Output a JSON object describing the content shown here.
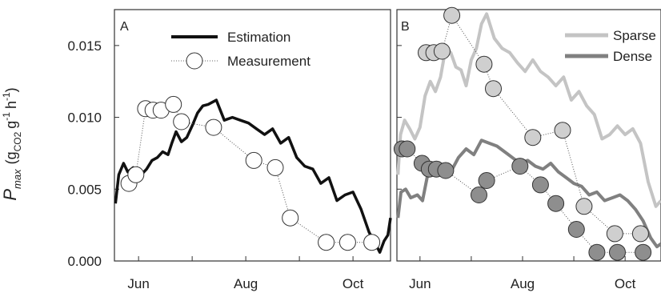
{
  "chart_data": [
    {
      "panel": "A",
      "type": "line",
      "xlabel": "",
      "ylabel": "P max (g CO2 g-1 h-1)",
      "ylim": [
        0,
        0.0175
      ],
      "yticks": [
        "0.000",
        "0.005",
        "0.010",
        "0.015"
      ],
      "xtick_labels": [
        "Jun",
        "Aug",
        "Oct"
      ],
      "xtick_months": [
        6,
        8,
        10
      ],
      "xlim_months": [
        5.55,
        10.7
      ],
      "legend": [
        {
          "label": "Estimation",
          "style": "line",
          "color": "#111111"
        },
        {
          "label": "Measurement",
          "style": "circle",
          "color": "#ffffff"
        }
      ],
      "series": [
        {
          "name": "Estimation",
          "color": "#111111",
          "x": [
            5.57,
            5.63,
            5.72,
            5.8,
            5.9,
            5.98,
            6.05,
            6.15,
            6.25,
            6.35,
            6.45,
            6.55,
            6.62,
            6.7,
            6.8,
            6.9,
            7.0,
            7.1,
            7.2,
            7.3,
            7.45,
            7.6,
            7.75,
            7.9,
            8.05,
            8.2,
            8.35,
            8.5,
            8.65,
            8.8,
            8.95,
            9.1,
            9.25,
            9.4,
            9.55,
            9.7,
            9.85,
            10.0,
            10.15,
            10.3,
            10.42,
            10.5,
            10.58,
            10.65,
            10.7
          ],
          "y": [
            0.004,
            0.006,
            0.0068,
            0.0062,
            0.0065,
            0.0056,
            0.006,
            0.0064,
            0.007,
            0.0072,
            0.0076,
            0.0074,
            0.0082,
            0.009,
            0.0083,
            0.0086,
            0.0094,
            0.0103,
            0.0108,
            0.0109,
            0.0112,
            0.0098,
            0.01,
            0.0098,
            0.0096,
            0.0092,
            0.0088,
            0.0092,
            0.0082,
            0.0086,
            0.0072,
            0.0066,
            0.0064,
            0.0054,
            0.0058,
            0.0042,
            0.0046,
            0.0048,
            0.0036,
            0.002,
            0.0012,
            0.0006,
            0.0014,
            0.0018,
            0.003
          ]
        },
        {
          "name": "Measurement",
          "color": "#ffffff",
          "x": [
            5.82,
            5.95,
            6.13,
            6.27,
            6.42,
            6.65,
            6.8,
            7.4,
            8.15,
            8.55,
            8.83,
            9.5,
            9.9,
            10.35
          ],
          "y": [
            0.0054,
            0.006,
            0.0106,
            0.0105,
            0.0105,
            0.0109,
            0.0097,
            0.0093,
            0.007,
            0.0065,
            0.003,
            0.0013,
            0.0013,
            0.0013
          ]
        }
      ]
    },
    {
      "panel": "B",
      "type": "line",
      "xlabel": "",
      "ylabel": "",
      "ylim": [
        0,
        0.0175
      ],
      "xtick_labels": [
        "Jun",
        "Aug",
        "Oct"
      ],
      "xtick_months": [
        6,
        8,
        10
      ],
      "xlim_months": [
        5.55,
        10.7
      ],
      "legend": [
        {
          "label": "Sparse",
          "style": "line",
          "color": "#c4c4c4"
        },
        {
          "label": "Dense",
          "style": "line",
          "color": "#808080"
        }
      ],
      "series": [
        {
          "name": "Sparse",
          "color": "#c4c4c4",
          "marker_fill": "#cfcfcf",
          "x": [
            5.57,
            5.62,
            5.7,
            5.8,
            5.9,
            6.0,
            6.1,
            6.2,
            6.3,
            6.4,
            6.5,
            6.6,
            6.7,
            6.8,
            6.9,
            7.0,
            7.1,
            7.2,
            7.3,
            7.45,
            7.6,
            7.75,
            7.9,
            8.05,
            8.2,
            8.35,
            8.5,
            8.65,
            8.8,
            8.95,
            9.1,
            9.25,
            9.4,
            9.55,
            9.7,
            9.85,
            10.0,
            10.15,
            10.3,
            10.45,
            10.6,
            10.7
          ],
          "y": [
            0.006,
            0.0088,
            0.0098,
            0.0092,
            0.0085,
            0.0093,
            0.0115,
            0.0125,
            0.0118,
            0.0128,
            0.0148,
            0.0145,
            0.0135,
            0.0133,
            0.0122,
            0.014,
            0.0148,
            0.0165,
            0.0172,
            0.0155,
            0.0148,
            0.0145,
            0.0138,
            0.0132,
            0.014,
            0.0132,
            0.0128,
            0.0122,
            0.0128,
            0.0112,
            0.0118,
            0.0108,
            0.0102,
            0.0085,
            0.0088,
            0.0094,
            0.0088,
            0.0092,
            0.0082,
            0.0055,
            0.0038,
            0.0042
          ]
        },
        {
          "name": "Dense",
          "color": "#808080",
          "marker_fill": "#8e8e8e",
          "x": [
            5.57,
            5.63,
            5.72,
            5.82,
            5.95,
            6.05,
            6.15,
            6.3,
            6.45,
            6.6,
            6.75,
            6.9,
            7.05,
            7.2,
            7.35,
            7.5,
            7.65,
            7.8,
            7.95,
            8.1,
            8.25,
            8.4,
            8.55,
            8.7,
            8.85,
            9.0,
            9.15,
            9.3,
            9.45,
            9.6,
            9.75,
            9.9,
            10.05,
            10.2,
            10.35,
            10.5,
            10.62,
            10.7
          ],
          "y": [
            0.003,
            0.0048,
            0.005,
            0.0044,
            0.0046,
            0.0042,
            0.006,
            0.0068,
            0.0066,
            0.0062,
            0.0072,
            0.0078,
            0.0074,
            0.0084,
            0.0082,
            0.008,
            0.0076,
            0.0072,
            0.0068,
            0.007,
            0.0066,
            0.0064,
            0.0068,
            0.0062,
            0.0058,
            0.0054,
            0.0052,
            0.0046,
            0.0048,
            0.0042,
            0.0044,
            0.0046,
            0.0042,
            0.0036,
            0.0028,
            0.0016,
            0.001,
            0.0012
          ]
        },
        {
          "name": "Sparse measurements",
          "color": "#cfcfcf",
          "x": [
            6.12,
            6.27,
            6.43,
            6.62,
            7.25,
            7.43,
            8.2,
            8.78,
            9.2,
            9.8,
            10.3
          ],
          "y": [
            0.0145,
            0.0145,
            0.0146,
            0.0171,
            0.0137,
            0.012,
            0.0086,
            0.0091,
            0.0038,
            0.0019,
            0.0019
          ]
        },
        {
          "name": "Dense measurements",
          "color": "#8e8e8e",
          "x": [
            5.65,
            5.75,
            6.04,
            6.18,
            6.32,
            6.5,
            7.15,
            7.3,
            7.95,
            8.35,
            8.65,
            9.05,
            9.45,
            9.85,
            10.35
          ],
          "y": [
            0.0078,
            0.0078,
            0.0068,
            0.0064,
            0.0064,
            0.0063,
            0.0046,
            0.0056,
            0.0066,
            0.0053,
            0.004,
            0.0022,
            0.0006,
            0.0006,
            0.0006
          ]
        }
      ]
    }
  ]
}
